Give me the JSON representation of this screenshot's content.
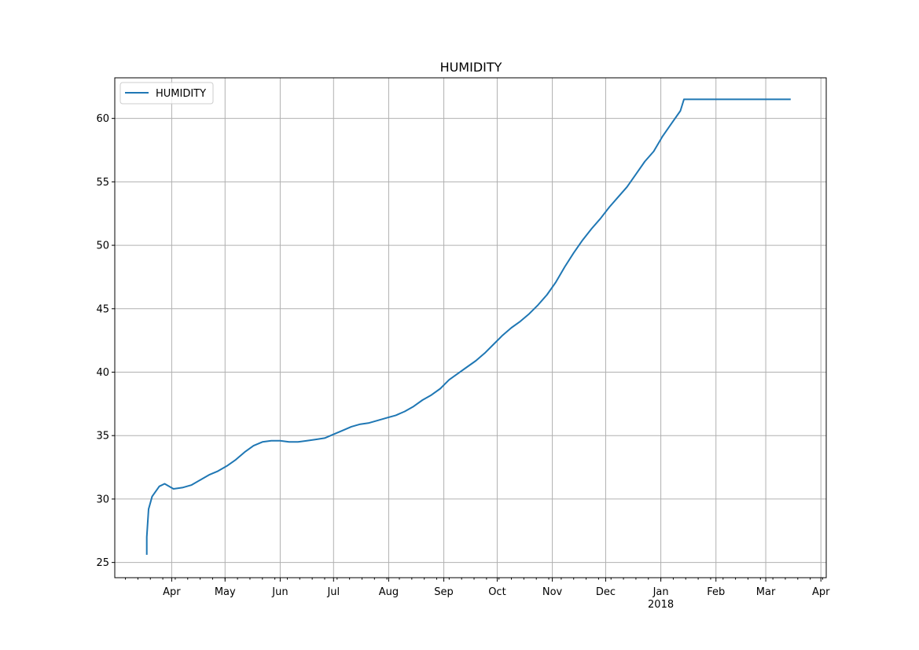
{
  "chart_data": {
    "type": "line",
    "title": "HUMIDITY",
    "xlabel": "",
    "ylabel": "",
    "grid": true,
    "legend_position": "top-left",
    "xlim": [
      "2017-02-28",
      "2018-04-04"
    ],
    "ylim": [
      23.8,
      63.2
    ],
    "x_ticks": [
      {
        "label": "Apr",
        "date": "2017-04-01"
      },
      {
        "label": "May",
        "date": "2017-05-01"
      },
      {
        "label": "Jun",
        "date": "2017-06-01"
      },
      {
        "label": "Jul",
        "date": "2017-07-01"
      },
      {
        "label": "Aug",
        "date": "2017-08-01"
      },
      {
        "label": "Sep",
        "date": "2017-09-01"
      },
      {
        "label": "Oct",
        "date": "2017-10-01"
      },
      {
        "label": "Nov",
        "date": "2017-11-01"
      },
      {
        "label": "Dec",
        "date": "2017-12-01"
      },
      {
        "label": "Jan",
        "date": "2018-01-01",
        "sublabel": "2018"
      },
      {
        "label": "Feb",
        "date": "2018-02-01"
      },
      {
        "label": "Mar",
        "date": "2018-03-01"
      },
      {
        "label": "Apr",
        "date": "2018-04-01"
      }
    ],
    "y_ticks": [
      {
        "label": "25",
        "value": 25
      },
      {
        "label": "30",
        "value": 30
      },
      {
        "label": "35",
        "value": 35
      },
      {
        "label": "40",
        "value": 40
      },
      {
        "label": "45",
        "value": 45
      },
      {
        "label": "50",
        "value": 50
      },
      {
        "label": "55",
        "value": 55
      },
      {
        "label": "60",
        "value": 60
      }
    ],
    "series": [
      {
        "name": "HUMIDITY",
        "color": "#1f77b4",
        "x": [
          "2017-03-18",
          "2017-03-18",
          "2017-03-19",
          "2017-03-21",
          "2017-03-25",
          "2017-03-28",
          "2017-04-02",
          "2017-04-07",
          "2017-04-12",
          "2017-04-17",
          "2017-04-22",
          "2017-04-27",
          "2017-05-02",
          "2017-05-07",
          "2017-05-12",
          "2017-05-17",
          "2017-05-22",
          "2017-05-27",
          "2017-06-01",
          "2017-06-06",
          "2017-06-11",
          "2017-06-16",
          "2017-06-21",
          "2017-06-26",
          "2017-07-01",
          "2017-07-06",
          "2017-07-11",
          "2017-07-16",
          "2017-07-21",
          "2017-07-26",
          "2017-07-31",
          "2017-08-05",
          "2017-08-10",
          "2017-08-15",
          "2017-08-20",
          "2017-08-25",
          "2017-08-30",
          "2017-09-04",
          "2017-09-09",
          "2017-09-14",
          "2017-09-19",
          "2017-09-24",
          "2017-09-29",
          "2017-10-04",
          "2017-10-09",
          "2017-10-14",
          "2017-10-19",
          "2017-10-24",
          "2017-10-29",
          "2017-11-03",
          "2017-11-08",
          "2017-11-13",
          "2017-11-18",
          "2017-11-23",
          "2017-11-28",
          "2017-12-03",
          "2017-12-08",
          "2017-12-13",
          "2017-12-18",
          "2017-12-23",
          "2017-12-28",
          "2018-01-02",
          "2018-01-07",
          "2018-01-12",
          "2018-01-14",
          "2018-03-15"
        ],
        "values": [
          25.6,
          27.0,
          29.2,
          30.2,
          31.0,
          31.2,
          30.8,
          30.9,
          31.1,
          31.5,
          31.9,
          32.2,
          32.6,
          33.1,
          33.7,
          34.2,
          34.5,
          34.6,
          34.6,
          34.5,
          34.5,
          34.6,
          34.7,
          34.8,
          35.1,
          35.4,
          35.7,
          35.9,
          36.0,
          36.2,
          36.4,
          36.6,
          36.9,
          37.3,
          37.8,
          38.2,
          38.7,
          39.4,
          39.9,
          40.4,
          40.9,
          41.5,
          42.2,
          42.9,
          43.5,
          44.0,
          44.6,
          45.3,
          46.1,
          47.1,
          48.3,
          49.4,
          50.4,
          51.3,
          52.1,
          53.0,
          53.8,
          54.6,
          55.6,
          56.6,
          57.4,
          58.6,
          59.6,
          60.6,
          61.5,
          61.5
        ]
      }
    ]
  }
}
